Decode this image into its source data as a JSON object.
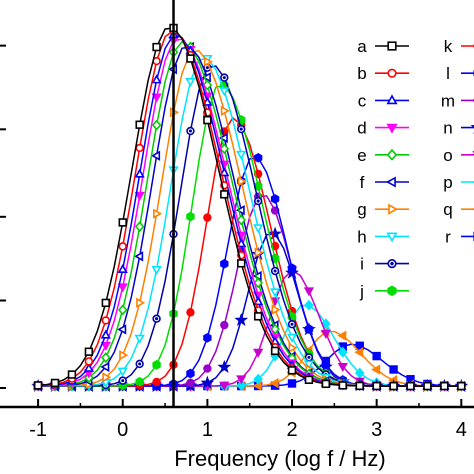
{
  "chart_data": {
    "type": "line",
    "xlabel": "Frequency (log f / Hz)",
    "ylabel": "",
    "xlim": [
      -1.45,
      4.15
    ],
    "ylim": [
      0,
      1.07
    ],
    "x_ticks": [
      -1,
      0,
      1,
      2,
      3,
      4
    ],
    "x_tick_labels": [
      "-1",
      "0",
      "1",
      "2",
      "3",
      "4"
    ],
    "vertical_marker_x": 0.6,
    "grid": false,
    "legend_position": "top-right",
    "x": [
      -1.0,
      -0.9,
      -0.8,
      -0.7,
      -0.6,
      -0.5,
      -0.4,
      -0.3,
      -0.2,
      -0.1,
      0.0,
      0.1,
      0.2,
      0.3,
      0.4,
      0.5,
      0.6,
      0.7,
      0.8,
      0.9,
      1.0,
      1.1,
      1.2,
      1.3,
      1.4,
      1.5,
      1.6,
      1.7,
      1.8,
      1.9,
      2.0,
      2.1,
      2.2,
      2.3,
      2.4,
      2.5,
      2.6,
      2.7,
      2.8,
      2.9,
      3.0,
      3.1,
      3.2,
      3.3,
      3.4,
      3.5,
      3.6,
      3.7,
      3.8,
      3.9,
      4.0
    ],
    "series_params": [
      {
        "name": "a",
        "color": "#000000",
        "marker": "square-open",
        "base": 0.055,
        "peak": 1.0,
        "center": 0.55,
        "left_width": 0.62,
        "right_width": 0.82
      },
      {
        "name": "b",
        "color": "#ff0000",
        "marker": "circle-open",
        "base": 0.055,
        "peak": 0.99,
        "center": 0.58,
        "left_width": 0.6,
        "right_width": 0.82
      },
      {
        "name": "c",
        "color": "#0000ff",
        "marker": "triangle-up-open",
        "base": 0.055,
        "peak": 0.98,
        "center": 0.62,
        "left_width": 0.59,
        "right_width": 0.82
      },
      {
        "name": "d",
        "color": "#ff00ff",
        "marker": "triangle-down",
        "base": 0.055,
        "peak": 0.97,
        "center": 0.65,
        "left_width": 0.58,
        "right_width": 0.82
      },
      {
        "name": "e",
        "color": "#00cc00",
        "marker": "diamond-open",
        "base": 0.055,
        "peak": 0.96,
        "center": 0.7,
        "left_width": 0.57,
        "right_width": 0.82
      },
      {
        "name": "f",
        "color": "#0000cc",
        "marker": "triangle-left-open",
        "base": 0.055,
        "peak": 0.95,
        "center": 0.75,
        "left_width": 0.56,
        "right_width": 0.8
      },
      {
        "name": "g",
        "color": "#ff8000",
        "marker": "triangle-right-open",
        "base": 0.055,
        "peak": 0.94,
        "center": 0.85,
        "left_width": 0.55,
        "right_width": 0.78
      },
      {
        "name": "h",
        "color": "#00e5ff",
        "marker": "triangle-down-open",
        "base": 0.055,
        "peak": 0.92,
        "center": 0.95,
        "left_width": 0.54,
        "right_width": 0.76
      },
      {
        "name": "i",
        "color": "#0000aa",
        "marker": "circle-half",
        "base": 0.055,
        "peak": 0.9,
        "center": 1.05,
        "left_width": 0.52,
        "right_width": 0.74
      },
      {
        "name": "j",
        "color": "#00dd00",
        "marker": "hexagon",
        "base": 0.055,
        "peak": 0.85,
        "center": 1.15,
        "left_width": 0.46,
        "right_width": 0.7
      },
      {
        "name": "k",
        "color": "#ff0000",
        "marker": "circle",
        "base": 0.055,
        "peak": 0.76,
        "center": 1.3,
        "left_width": 0.44,
        "right_width": 0.62
      },
      {
        "name": "l",
        "color": "#0000ff",
        "marker": "hexagon",
        "base": 0.055,
        "peak": 0.66,
        "center": 1.55,
        "left_width": 0.44,
        "right_width": 0.55
      },
      {
        "name": "m",
        "color": "#9900cc",
        "marker": "circle",
        "base": 0.055,
        "peak": 0.56,
        "center": 1.65,
        "left_width": 0.42,
        "right_width": 0.5
      },
      {
        "name": "n",
        "color": "#0000cc",
        "marker": "star",
        "base": 0.055,
        "peak": 0.46,
        "center": 1.75,
        "left_width": 0.38,
        "right_width": 0.45
      },
      {
        "name": "o",
        "color": "#cc00cc",
        "marker": "triangle-down",
        "base": 0.055,
        "peak": 0.36,
        "center": 2.0,
        "left_width": 0.36,
        "right_width": 0.45
      },
      {
        "name": "p",
        "color": "#00e5ff",
        "marker": "diamond",
        "base": 0.055,
        "peak": 0.27,
        "center": 2.15,
        "left_width": 0.35,
        "right_width": 0.48
      },
      {
        "name": "q",
        "color": "#ff8000",
        "marker": "triangle-left",
        "base": 0.055,
        "peak": 0.2,
        "center": 2.45,
        "left_width": 0.38,
        "right_width": 0.5
      },
      {
        "name": "r",
        "color": "#0000ff",
        "marker": "square",
        "base": 0.055,
        "peak": 0.165,
        "center": 2.7,
        "left_width": 0.42,
        "right_width": 0.52
      }
    ]
  }
}
